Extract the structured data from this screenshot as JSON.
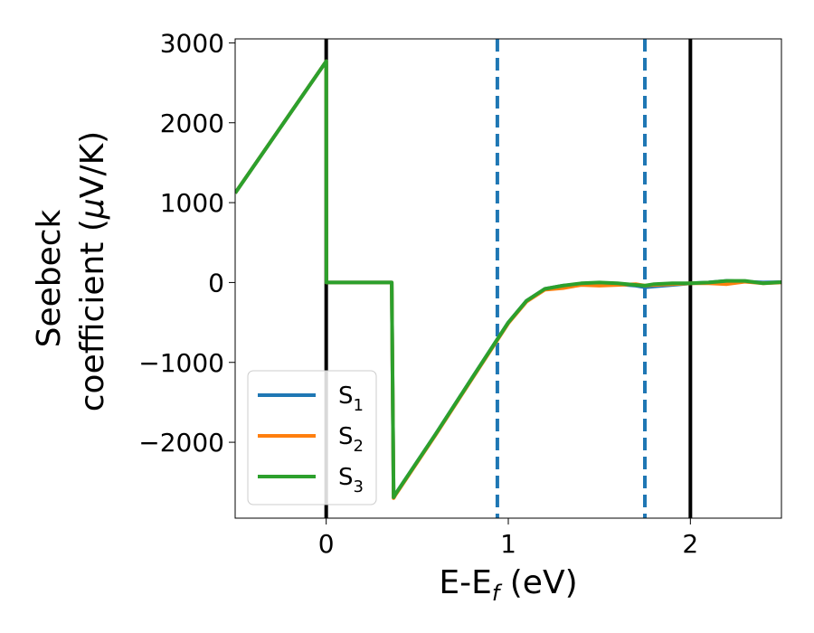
{
  "chart_data": {
    "type": "line",
    "xlabel": "E-E",
    "xlabel_sub": "f",
    "xlabel_unit": " (eV)",
    "ylabel_line1": "Seebeck",
    "ylabel_line2": "coefficient  (",
    "ylabel_mu": "μ",
    "ylabel_unit": "V/K)",
    "xlim": [
      -0.5,
      2.5
    ],
    "ylim": [
      -2950,
      3050
    ],
    "xticks": [
      0,
      1,
      2
    ],
    "xtick_labels": [
      "0",
      "1",
      "2"
    ],
    "yticks": [
      3000,
      2000,
      1000,
      0,
      -1000,
      -2000
    ],
    "ytick_labels": [
      "3000",
      "2000",
      "1000",
      "0",
      "−1000",
      "−2000"
    ],
    "grid": false,
    "legend_position": "lower-left",
    "vlines": [
      {
        "x": 0,
        "style": "solid",
        "color": "#000000"
      },
      {
        "x": 2,
        "style": "solid",
        "color": "#000000"
      },
      {
        "x": 0.94,
        "style": "dashed",
        "color": "#1f77b4"
      },
      {
        "x": 1.75,
        "style": "dashed",
        "color": "#1f77b4"
      }
    ],
    "series": [
      {
        "name": "S",
        "sub": "1",
        "color": "#1f77b4",
        "x": [
          -0.5,
          0.0,
          0.001,
          0.36,
          0.37,
          0.38,
          0.6,
          0.8,
          1.0,
          1.1,
          1.2,
          1.3,
          1.4,
          1.5,
          1.6,
          1.7,
          1.75,
          1.8,
          1.9,
          2.0,
          2.1,
          2.2,
          2.3,
          2.4,
          2.5
        ],
        "y": [
          1120,
          2770,
          0,
          0,
          -2690,
          -2650,
          -1900,
          -1200,
          -500,
          -230,
          -80,
          -40,
          -20,
          -10,
          -20,
          -40,
          -60,
          -50,
          -30,
          -10,
          0,
          20,
          10,
          0,
          5
        ]
      },
      {
        "name": "S",
        "sub": "2",
        "color": "#ff7f0e",
        "x": [
          -0.5,
          0.0,
          0.001,
          0.36,
          0.37,
          0.38,
          0.6,
          0.8,
          1.0,
          1.1,
          1.2,
          1.3,
          1.4,
          1.5,
          1.6,
          1.7,
          1.75,
          1.8,
          1.9,
          2.0,
          2.1,
          2.2,
          2.3,
          2.4,
          2.5
        ],
        "y": [
          1120,
          2770,
          0,
          0,
          -2700,
          -2660,
          -1910,
          -1210,
          -510,
          -240,
          -90,
          -70,
          -30,
          -40,
          -30,
          -20,
          -40,
          -30,
          -20,
          -10,
          -10,
          -20,
          10,
          -10,
          0
        ]
      },
      {
        "name": "S",
        "sub": "3",
        "color": "#2ca02c",
        "x": [
          -0.5,
          0.0,
          0.001,
          0.36,
          0.37,
          0.38,
          0.6,
          0.8,
          1.0,
          1.1,
          1.2,
          1.3,
          1.4,
          1.5,
          1.6,
          1.7,
          1.75,
          1.8,
          1.9,
          2.0,
          2.1,
          2.2,
          2.3,
          2.4,
          2.5
        ],
        "y": [
          1120,
          2770,
          0,
          0,
          -2690,
          -2650,
          -1900,
          -1200,
          -500,
          -230,
          -80,
          -40,
          -10,
          0,
          -10,
          -30,
          -40,
          -20,
          -10,
          -10,
          0,
          20,
          20,
          -10,
          5
        ]
      }
    ]
  }
}
